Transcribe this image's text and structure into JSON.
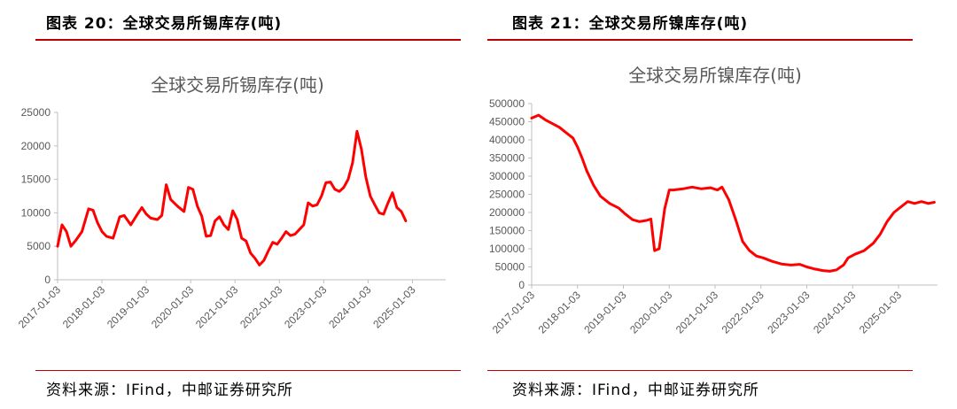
{
  "left": {
    "figure_title": "图表 20：全球交易所锡库存(吨)",
    "source": "资料来源：IFind，中邮证券研究所"
  },
  "right": {
    "figure_title": "图表 21：全球交易所镍库存(吨)",
    "source": "资料来源：IFind，中邮证券研究所"
  },
  "colors": {
    "accent": "#c00000",
    "series": "#ff0000",
    "axis": "#bfbfbf",
    "text": "#595959"
  },
  "chart_data": [
    {
      "type": "line",
      "title": "全球交易所锡库存(吨)",
      "xlabel": "",
      "ylabel": "",
      "ylim": [
        0,
        25000
      ],
      "yticks": [
        "0",
        "5000",
        "10000",
        "15000",
        "20000",
        "25000"
      ],
      "xticks": [
        "2017-01-03",
        "2018-01-03",
        "2019-01-03",
        "2020-01-03",
        "2021-01-03",
        "2022-01-03",
        "2023-01-03",
        "2024-01-03",
        "2025-01-03"
      ],
      "xlim": [
        2017.0,
        2025.75
      ],
      "grid": false,
      "legend": "none",
      "series": [
        {
          "values": [
            [
              2017.0,
              5000
            ],
            [
              2017.1,
              8200
            ],
            [
              2017.2,
              7200
            ],
            [
              2017.3,
              5000
            ],
            [
              2017.4,
              5800
            ],
            [
              2017.55,
              7200
            ],
            [
              2017.7,
              10600
            ],
            [
              2017.8,
              10400
            ],
            [
              2017.9,
              8500
            ],
            [
              2018.0,
              7200
            ],
            [
              2018.1,
              6500
            ],
            [
              2018.25,
              6200
            ],
            [
              2018.4,
              9400
            ],
            [
              2018.5,
              9600
            ],
            [
              2018.65,
              8200
            ],
            [
              2018.8,
              9800
            ],
            [
              2018.9,
              10800
            ],
            [
              2019.0,
              9800
            ],
            [
              2019.1,
              9200
            ],
            [
              2019.25,
              9000
            ],
            [
              2019.35,
              9600
            ],
            [
              2019.45,
              14200
            ],
            [
              2019.55,
              12000
            ],
            [
              2019.7,
              11000
            ],
            [
              2019.85,
              10200
            ],
            [
              2019.95,
              13800
            ],
            [
              2020.05,
              13500
            ],
            [
              2020.15,
              11000
            ],
            [
              2020.25,
              9500
            ],
            [
              2020.35,
              6500
            ],
            [
              2020.45,
              6600
            ],
            [
              2020.55,
              8800
            ],
            [
              2020.65,
              9400
            ],
            [
              2020.75,
              8200
            ],
            [
              2020.85,
              7500
            ],
            [
              2020.95,
              10300
            ],
            [
              2021.05,
              9000
            ],
            [
              2021.15,
              6200
            ],
            [
              2021.25,
              5800
            ],
            [
              2021.35,
              4000
            ],
            [
              2021.45,
              3200
            ],
            [
              2021.55,
              2200
            ],
            [
              2021.65,
              2900
            ],
            [
              2021.75,
              4300
            ],
            [
              2021.85,
              5600
            ],
            [
              2021.95,
              5300
            ],
            [
              2022.05,
              6200
            ],
            [
              2022.15,
              7200
            ],
            [
              2022.25,
              6600
            ],
            [
              2022.35,
              6800
            ],
            [
              2022.45,
              7500
            ],
            [
              2022.55,
              8200
            ],
            [
              2022.65,
              11500
            ],
            [
              2022.75,
              11000
            ],
            [
              2022.85,
              11200
            ],
            [
              2022.95,
              12500
            ],
            [
              2023.05,
              14500
            ],
            [
              2023.15,
              14600
            ],
            [
              2023.25,
              13500
            ],
            [
              2023.35,
              13200
            ],
            [
              2023.45,
              13800
            ],
            [
              2023.55,
              15000
            ],
            [
              2023.65,
              17500
            ],
            [
              2023.75,
              22200
            ],
            [
              2023.85,
              19500
            ],
            [
              2023.95,
              15300
            ],
            [
              2024.05,
              12500
            ],
            [
              2024.15,
              11200
            ],
            [
              2024.25,
              10000
            ],
            [
              2024.35,
              9800
            ],
            [
              2024.45,
              11500
            ],
            [
              2024.55,
              13000
            ],
            [
              2024.65,
              10800
            ],
            [
              2024.75,
              10200
            ],
            [
              2024.85,
              8800
            ]
          ]
        }
      ]
    },
    {
      "type": "line",
      "title": "全球交易所镍库存(吨)",
      "xlabel": "",
      "ylabel": "",
      "ylim": [
        0,
        500000
      ],
      "yticks": [
        "0",
        "50000",
        "100000",
        "150000",
        "200000",
        "250000",
        "300000",
        "350000",
        "400000",
        "450000",
        "500000"
      ],
      "xticks": [
        "2017-01-03",
        "2018-01-03",
        "2019-01-03",
        "2020-01-03",
        "2021-01-03",
        "2022-01-03",
        "2023-01-03",
        "2024-01-03",
        "2025-01-03"
      ],
      "xlim": [
        2017.0,
        2025.85
      ],
      "grid": false,
      "legend": "none",
      "series": [
        {
          "values": [
            [
              2017.0,
              460000
            ],
            [
              2017.15,
              468000
            ],
            [
              2017.3,
              455000
            ],
            [
              2017.45,
              445000
            ],
            [
              2017.6,
              435000
            ],
            [
              2017.75,
              420000
            ],
            [
              2017.9,
              405000
            ],
            [
              2018.0,
              380000
            ],
            [
              2018.1,
              350000
            ],
            [
              2018.2,
              315000
            ],
            [
              2018.35,
              275000
            ],
            [
              2018.5,
              245000
            ],
            [
              2018.7,
              225000
            ],
            [
              2018.9,
              212000
            ],
            [
              2019.05,
              195000
            ],
            [
              2019.2,
              180000
            ],
            [
              2019.35,
              175000
            ],
            [
              2019.5,
              178000
            ],
            [
              2019.6,
              182000
            ],
            [
              2019.68,
              95000
            ],
            [
              2019.78,
              100000
            ],
            [
              2019.9,
              210000
            ],
            [
              2020.0,
              262000
            ],
            [
              2020.1,
              262000
            ],
            [
              2020.3,
              265000
            ],
            [
              2020.5,
              270000
            ],
            [
              2020.7,
              265000
            ],
            [
              2020.9,
              268000
            ],
            [
              2021.05,
              262000
            ],
            [
              2021.15,
              270000
            ],
            [
              2021.3,
              235000
            ],
            [
              2021.45,
              180000
            ],
            [
              2021.6,
              120000
            ],
            [
              2021.75,
              95000
            ],
            [
              2021.9,
              80000
            ],
            [
              2022.05,
              75000
            ],
            [
              2022.25,
              65000
            ],
            [
              2022.45,
              58000
            ],
            [
              2022.65,
              55000
            ],
            [
              2022.85,
              57000
            ],
            [
              2023.0,
              50000
            ],
            [
              2023.15,
              45000
            ],
            [
              2023.35,
              40000
            ],
            [
              2023.5,
              38000
            ],
            [
              2023.65,
              42000
            ],
            [
              2023.8,
              55000
            ],
            [
              2023.9,
              75000
            ],
            [
              2024.05,
              85000
            ],
            [
              2024.25,
              95000
            ],
            [
              2024.45,
              115000
            ],
            [
              2024.6,
              140000
            ],
            [
              2024.75,
              175000
            ],
            [
              2024.9,
              200000
            ],
            [
              2025.05,
              215000
            ],
            [
              2025.2,
              230000
            ],
            [
              2025.35,
              225000
            ],
            [
              2025.5,
              230000
            ],
            [
              2025.65,
              225000
            ],
            [
              2025.78,
              228000
            ]
          ]
        }
      ]
    }
  ]
}
